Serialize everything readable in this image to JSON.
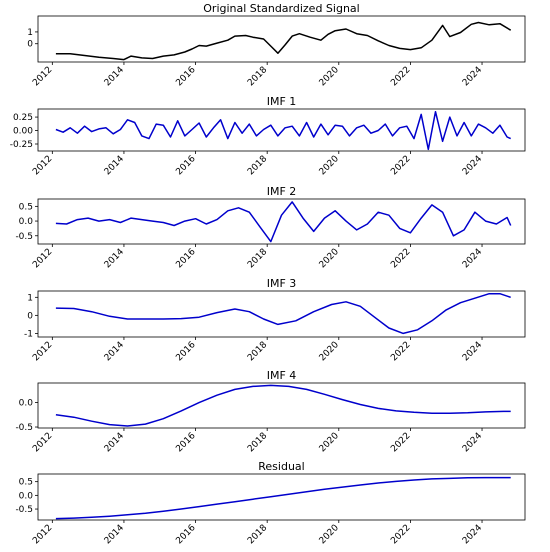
{
  "chart_data": [
    {
      "type": "line",
      "title": "Original Standardized Signal",
      "color": "#000000",
      "xlim": [
        2011.6,
        2025.2
      ],
      "ylim": [
        -1.55,
        2.35
      ],
      "yticks": [
        0,
        1
      ],
      "ytick_labels": [
        "0",
        "1"
      ],
      "xticks": [
        2012,
        2014,
        2016,
        2018,
        2020,
        2022,
        2024
      ],
      "x": [
        2012.1,
        2012.5,
        2012.9,
        2013.3,
        2013.7,
        2014.0,
        2014.2,
        2014.5,
        2014.8,
        2015.1,
        2015.4,
        2015.7,
        2015.9,
        2016.1,
        2016.3,
        2016.6,
        2016.9,
        2017.1,
        2017.4,
        2017.6,
        2017.9,
        2018.1,
        2018.3,
        2018.5,
        2018.7,
        2018.9,
        2019.2,
        2019.5,
        2019.7,
        2019.9,
        2020.2,
        2020.5,
        2020.8,
        2021.1,
        2021.4,
        2021.7,
        2022.0,
        2022.3,
        2022.6,
        2022.9,
        2023.1,
        2023.4,
        2023.7,
        2023.9,
        2024.2,
        2024.5,
        2024.8
      ],
      "y": [
        -0.85,
        -0.85,
        -1.0,
        -1.15,
        -1.25,
        -1.35,
        -1.05,
        -1.2,
        -1.25,
        -1.05,
        -0.95,
        -0.7,
        -0.45,
        -0.15,
        -0.2,
        0.05,
        0.3,
        0.65,
        0.7,
        0.55,
        0.4,
        -0.2,
        -0.8,
        -0.1,
        0.65,
        0.85,
        0.55,
        0.3,
        0.8,
        1.1,
        1.25,
        0.85,
        0.7,
        0.25,
        -0.15,
        -0.4,
        -0.5,
        -0.35,
        0.3,
        1.55,
        0.6,
        0.95,
        1.65,
        1.8,
        1.6,
        1.7,
        1.15
      ]
    },
    {
      "type": "line",
      "title": "IMF 1",
      "color": "#0000cc",
      "xlim": [
        2011.6,
        2025.2
      ],
      "ylim": [
        -0.38,
        0.4
      ],
      "yticks": [
        -0.25,
        0.0,
        0.25
      ],
      "ytick_labels": [
        "-0.25",
        "0.00",
        "0.25"
      ],
      "xticks": [
        2012,
        2014,
        2016,
        2018,
        2020,
        2022,
        2024
      ],
      "x": [
        2012.1,
        2012.3,
        2012.5,
        2012.7,
        2012.9,
        2013.1,
        2013.3,
        2013.5,
        2013.7,
        2013.9,
        2014.1,
        2014.3,
        2014.5,
        2014.7,
        2014.9,
        2015.1,
        2015.3,
        2015.5,
        2015.7,
        2015.9,
        2016.1,
        2016.3,
        2016.5,
        2016.7,
        2016.9,
        2017.1,
        2017.3,
        2017.5,
        2017.7,
        2017.9,
        2018.1,
        2018.3,
        2018.5,
        2018.7,
        2018.9,
        2019.1,
        2019.3,
        2019.5,
        2019.7,
        2019.9,
        2020.1,
        2020.3,
        2020.5,
        2020.7,
        2020.9,
        2021.1,
        2021.3,
        2021.5,
        2021.7,
        2021.9,
        2022.1,
        2022.3,
        2022.5,
        2022.7,
        2022.9,
        2023.1,
        2023.3,
        2023.5,
        2023.7,
        2023.9,
        2024.1,
        2024.3,
        2024.5,
        2024.7,
        2024.8
      ],
      "y": [
        0.02,
        -0.03,
        0.05,
        -0.05,
        0.08,
        -0.02,
        0.03,
        0.05,
        -0.06,
        0.02,
        0.2,
        0.15,
        -0.1,
        -0.15,
        0.12,
        0.1,
        -0.12,
        0.18,
        -0.1,
        0.02,
        0.14,
        -0.12,
        0.05,
        0.2,
        -0.15,
        0.15,
        -0.05,
        0.12,
        -0.1,
        0.02,
        0.1,
        -0.1,
        0.05,
        0.08,
        -0.1,
        0.15,
        -0.12,
        0.12,
        -0.08,
        0.1,
        0.08,
        -0.1,
        0.05,
        0.1,
        -0.05,
        0.0,
        0.12,
        -0.1,
        0.05,
        0.08,
        -0.15,
        0.3,
        -0.35,
        0.35,
        -0.2,
        0.25,
        -0.1,
        0.15,
        -0.1,
        0.12,
        0.05,
        -0.05,
        0.1,
        -0.12,
        -0.15
      ]
    },
    {
      "type": "line",
      "title": "IMF 2",
      "color": "#0000cc",
      "xlim": [
        2011.6,
        2025.2
      ],
      "ylim": [
        -0.78,
        0.75
      ],
      "yticks": [
        -0.5,
        0.0,
        0.5
      ],
      "ytick_labels": [
        "-0.5",
        "0.0",
        "0.5"
      ],
      "xticks": [
        2012,
        2014,
        2016,
        2018,
        2020,
        2022,
        2024
      ],
      "x": [
        2012.1,
        2012.4,
        2012.7,
        2013.0,
        2013.3,
        2013.6,
        2013.9,
        2014.2,
        2014.5,
        2014.8,
        2015.1,
        2015.4,
        2015.7,
        2016.0,
        2016.3,
        2016.6,
        2016.9,
        2017.2,
        2017.5,
        2017.8,
        2018.1,
        2018.4,
        2018.7,
        2019.0,
        2019.3,
        2019.6,
        2019.9,
        2020.2,
        2020.5,
        2020.8,
        2021.1,
        2021.4,
        2021.7,
        2022.0,
        2022.3,
        2022.6,
        2022.9,
        2023.2,
        2023.5,
        2023.8,
        2024.1,
        2024.4,
        2024.7,
        2024.8
      ],
      "y": [
        -0.08,
        -0.1,
        0.05,
        0.1,
        0.0,
        0.05,
        -0.05,
        0.1,
        0.05,
        0.0,
        -0.05,
        -0.15,
        0.0,
        0.08,
        -0.1,
        0.05,
        0.35,
        0.45,
        0.3,
        -0.2,
        -0.7,
        0.2,
        0.65,
        0.1,
        -0.35,
        0.1,
        0.35,
        0.0,
        -0.3,
        -0.1,
        0.3,
        0.2,
        -0.25,
        -0.4,
        0.1,
        0.55,
        0.3,
        -0.5,
        -0.3,
        0.3,
        0.0,
        -0.1,
        0.12,
        -0.15
      ]
    },
    {
      "type": "line",
      "title": "IMF 3",
      "color": "#0000cc",
      "xlim": [
        2011.6,
        2025.2
      ],
      "ylim": [
        -1.2,
        1.35
      ],
      "yticks": [
        -1,
        0,
        1
      ],
      "ytick_labels": [
        "-1",
        "0",
        "1"
      ],
      "xticks": [
        2012,
        2014,
        2016,
        2018,
        2020,
        2022,
        2024
      ],
      "x": [
        2012.1,
        2012.6,
        2013.1,
        2013.6,
        2014.1,
        2014.6,
        2015.1,
        2015.6,
        2016.1,
        2016.6,
        2017.1,
        2017.5,
        2017.9,
        2018.3,
        2018.8,
        2019.3,
        2019.8,
        2020.2,
        2020.6,
        2021.0,
        2021.4,
        2021.8,
        2022.2,
        2022.6,
        2023.0,
        2023.4,
        2023.8,
        2024.2,
        2024.5,
        2024.8
      ],
      "y": [
        0.4,
        0.38,
        0.2,
        -0.05,
        -0.2,
        -0.2,
        -0.2,
        -0.18,
        -0.1,
        0.15,
        0.35,
        0.2,
        -0.2,
        -0.5,
        -0.3,
        0.2,
        0.6,
        0.75,
        0.5,
        -0.1,
        -0.7,
        -1.0,
        -0.8,
        -0.3,
        0.3,
        0.7,
        0.95,
        1.2,
        1.2,
        1.0
      ]
    },
    {
      "type": "line",
      "title": "IMF 4",
      "color": "#0000cc",
      "xlim": [
        2011.6,
        2025.2
      ],
      "ylim": [
        -0.52,
        0.4
      ],
      "yticks": [
        -0.5,
        0.0
      ],
      "ytick_labels": [
        "-0.5",
        "0.0"
      ],
      "xticks": [
        2012,
        2014,
        2016,
        2018,
        2020,
        2022,
        2024
      ],
      "x": [
        2012.1,
        2012.6,
        2013.1,
        2013.6,
        2014.1,
        2014.6,
        2015.1,
        2015.6,
        2016.1,
        2016.6,
        2017.1,
        2017.6,
        2018.1,
        2018.6,
        2019.1,
        2019.6,
        2020.1,
        2020.6,
        2021.1,
        2021.6,
        2022.1,
        2022.6,
        2023.1,
        2023.6,
        2024.1,
        2024.6,
        2024.8
      ],
      "y": [
        -0.25,
        -0.3,
        -0.38,
        -0.45,
        -0.48,
        -0.44,
        -0.33,
        -0.17,
        0.0,
        0.15,
        0.27,
        0.33,
        0.35,
        0.33,
        0.27,
        0.17,
        0.06,
        -0.04,
        -0.12,
        -0.17,
        -0.2,
        -0.22,
        -0.22,
        -0.21,
        -0.19,
        -0.18,
        -0.18
      ]
    },
    {
      "type": "line",
      "title": "Residual",
      "color": "#0000cc",
      "xlim": [
        2011.6,
        2025.2
      ],
      "ylim": [
        -0.9,
        0.78
      ],
      "yticks": [
        -0.5,
        0.0,
        0.5
      ],
      "ytick_labels": [
        "-0.5",
        "0.0",
        "0.5"
      ],
      "xticks": [
        2012,
        2014,
        2016,
        2018,
        2020,
        2022,
        2024
      ],
      "x": [
        2012.1,
        2012.6,
        2013.1,
        2013.6,
        2014.1,
        2014.6,
        2015.1,
        2015.6,
        2016.1,
        2016.6,
        2017.1,
        2017.6,
        2018.1,
        2018.6,
        2019.1,
        2019.6,
        2020.1,
        2020.6,
        2021.1,
        2021.6,
        2022.1,
        2022.6,
        2023.1,
        2023.6,
        2024.1,
        2024.6,
        2024.8
      ],
      "y": [
        -0.85,
        -0.83,
        -0.8,
        -0.76,
        -0.71,
        -0.65,
        -0.58,
        -0.5,
        -0.41,
        -0.32,
        -0.23,
        -0.14,
        -0.05,
        0.04,
        0.13,
        0.22,
        0.3,
        0.38,
        0.45,
        0.51,
        0.56,
        0.6,
        0.62,
        0.64,
        0.65,
        0.65,
        0.65
      ]
    }
  ]
}
